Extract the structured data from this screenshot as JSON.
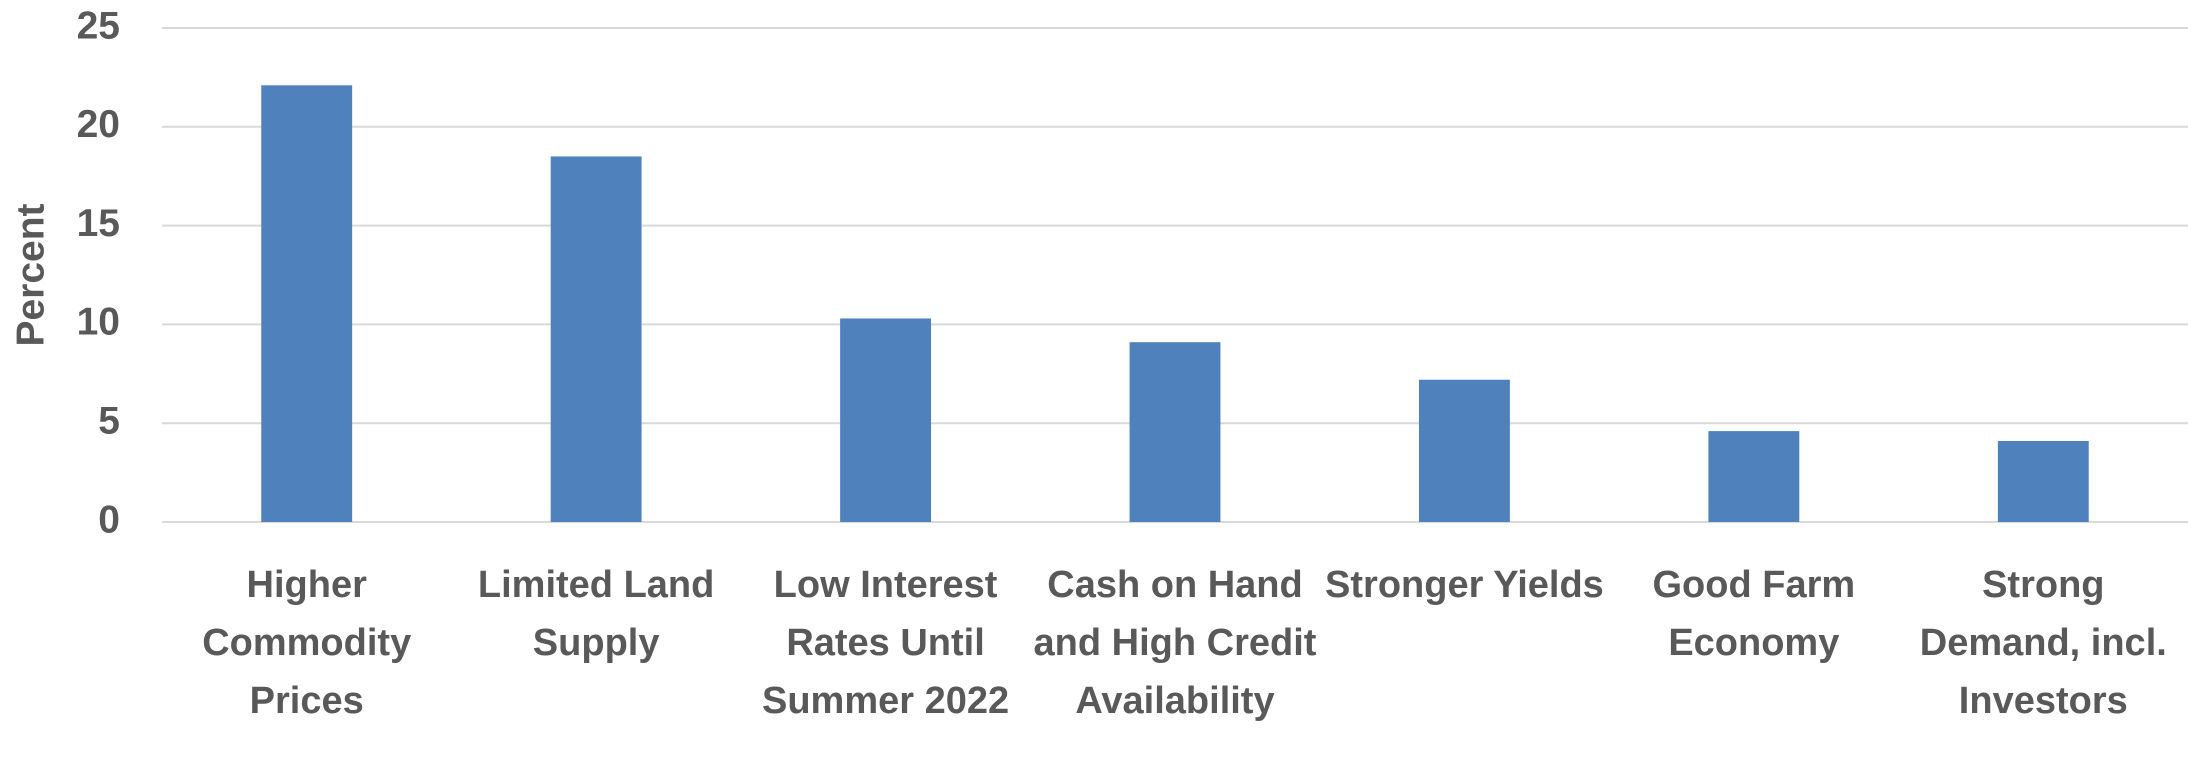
{
  "chart_data": {
    "type": "bar",
    "y_label": "Percent",
    "categories": [
      "Higher Commodity Prices",
      "Limited Land Supply",
      "Low Interest Rates Until Summer 2022",
      "Cash on Hand and High Credit Availability",
      "Stronger Yields",
      "Good Farm Economy",
      "Strong Demand, incl. Investors"
    ],
    "values": [
      22.1,
      18.5,
      10.3,
      9.1,
      7.2,
      4.6,
      4.1
    ],
    "color": "#4f81bd",
    "ylim": [
      0,
      25
    ],
    "yticks": [
      0,
      5,
      10,
      15,
      20,
      25
    ],
    "grid": true
  }
}
